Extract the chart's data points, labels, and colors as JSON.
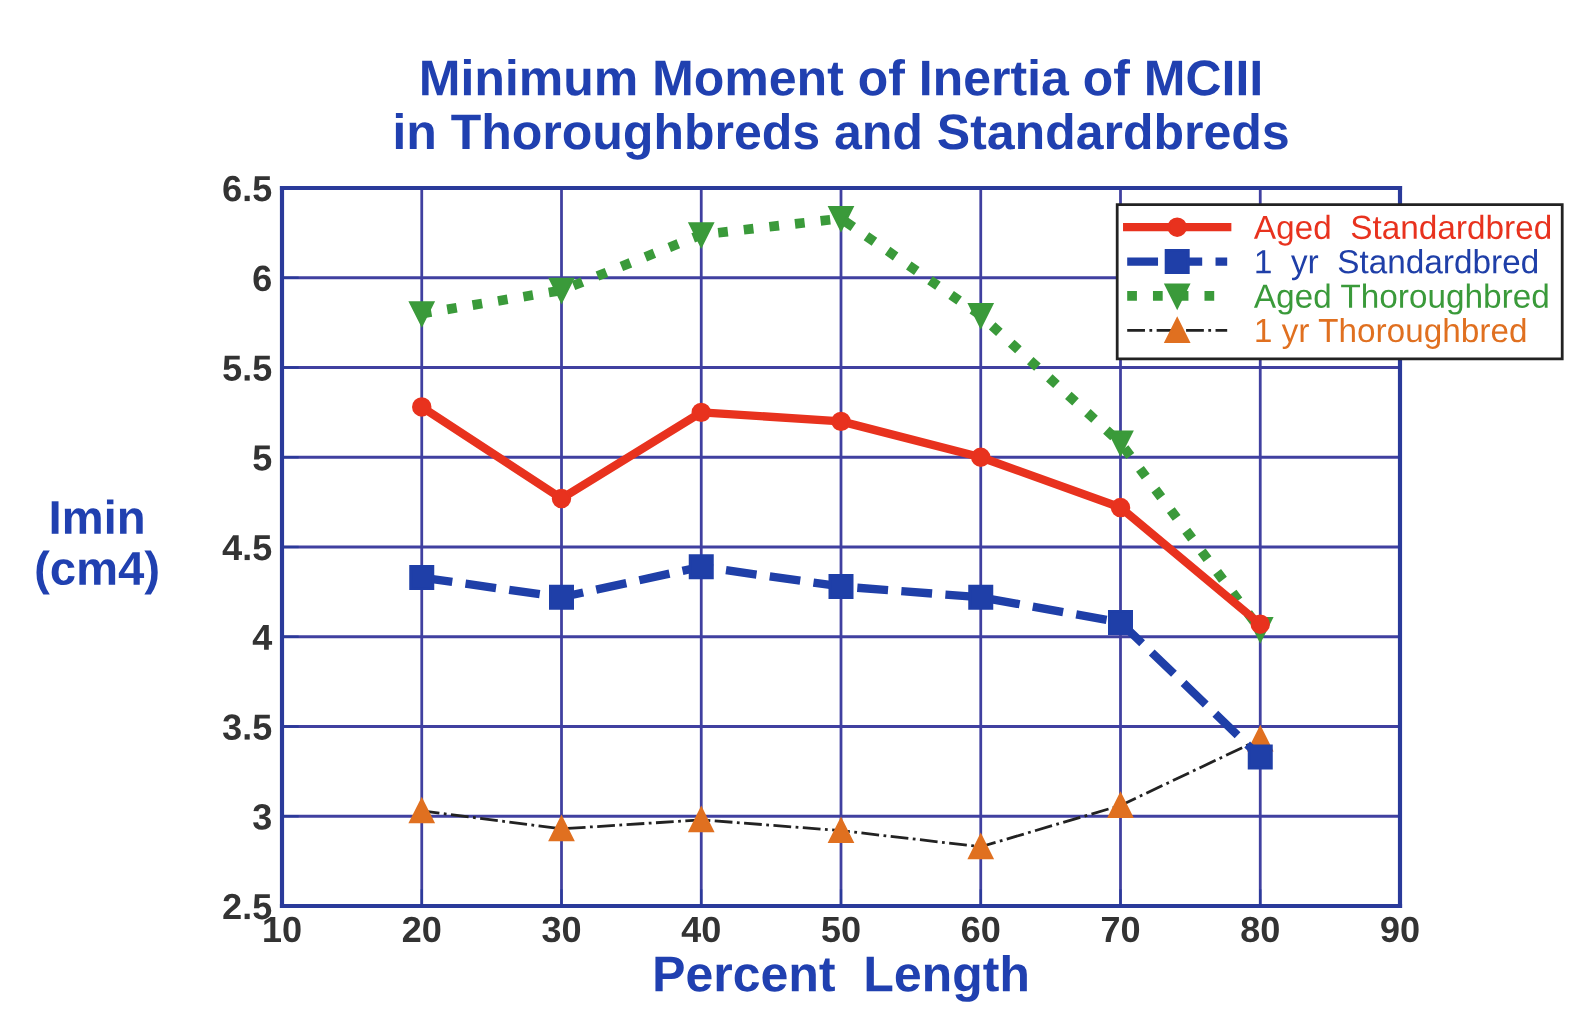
{
  "chart_data": {
    "type": "line",
    "title": "Minimum Moment of Inertia of MCIII\nin Thoroughbreds and Standardbreds",
    "xlabel": "Percent  Length",
    "ylabel": "Imin\n(cm4)",
    "x": [
      20,
      30,
      40,
      50,
      60,
      70,
      80
    ],
    "series": [
      {
        "name": "Aged  Standardbred",
        "color": "#e8321e",
        "values": [
          5.28,
          4.77,
          5.25,
          5.2,
          5.0,
          4.72,
          4.07
        ],
        "marker": "circle",
        "line_style": "solid"
      },
      {
        "name": "1  yr  Standardbred",
        "color": "#1f3fa8",
        "values": [
          4.33,
          4.22,
          4.39,
          4.28,
          4.22,
          4.08,
          3.33
        ],
        "marker": "square",
        "line_style": "dashed"
      },
      {
        "name": "Aged Thoroughbred",
        "color": "#3a9a3a",
        "values": [
          5.8,
          5.93,
          6.24,
          6.33,
          5.79,
          5.08,
          4.04
        ],
        "marker": "triangle",
        "line_style": "dotted"
      },
      {
        "name": "1 yr Thoroughbred",
        "color": "#e07020",
        "values": [
          3.03,
          2.93,
          2.98,
          2.92,
          2.83,
          3.06,
          3.43
        ],
        "marker": "triangle",
        "line_style": "dashdot"
      }
    ],
    "xlim": [
      10,
      90
    ],
    "xticks": [
      10,
      20,
      30,
      40,
      50,
      60,
      70,
      80,
      90
    ],
    "ylim": [
      2.5,
      6.5
    ],
    "yticks": [
      2.5,
      3,
      3.5,
      4,
      4.5,
      5,
      5.5,
      6,
      6.5
    ],
    "grid": true,
    "legend": "top right"
  }
}
